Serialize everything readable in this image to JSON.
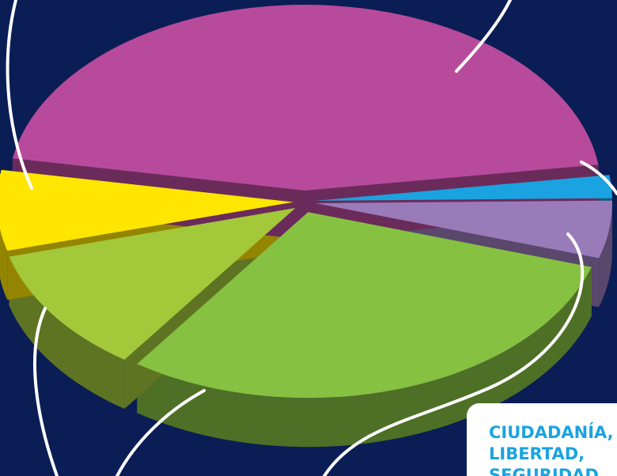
{
  "chart_data": {
    "type": "pie",
    "values": [
      2,
      5,
      30,
      11,
      7,
      45
    ],
    "colors": [
      "#1aa3e0",
      "#9a7bba",
      "#86c142",
      "#a3c83a",
      "#ffe600",
      "#b84a9c"
    ],
    "annotation": [
      "CIUDADANÍA,",
      "LIBERTAD,",
      "SEGURIDAD"
    ]
  }
}
